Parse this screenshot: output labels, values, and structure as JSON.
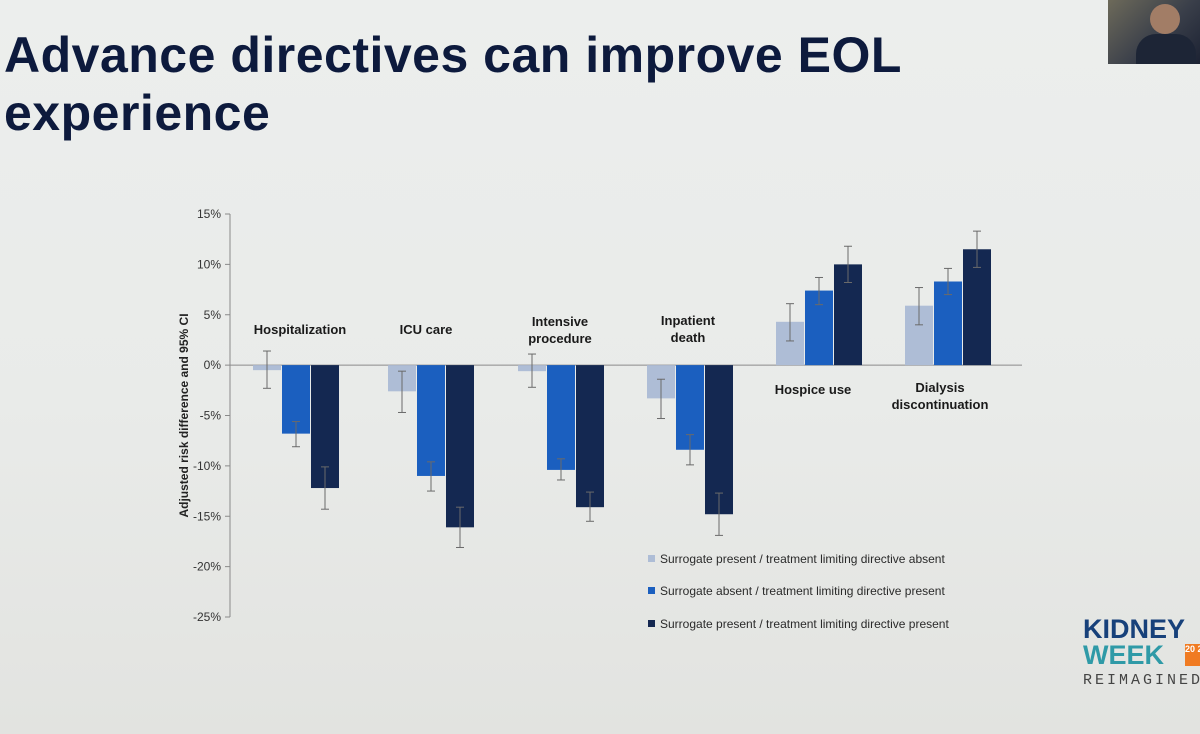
{
  "slide": {
    "title": "Advance directives can improve EOL experience"
  },
  "logo": {
    "line1": "KIDNEY",
    "line2": "WEEK",
    "year": "20 20",
    "line3": "REIMAGINED"
  },
  "colors": {
    "series1": "#aebdd6",
    "series2": "#1b5fbf",
    "series3": "#142851",
    "title": "#0d1a3d"
  },
  "chart_data": {
    "type": "bar",
    "ylabel": "Adjusted risk difference and 95% CI",
    "ylim": [
      -25,
      15
    ],
    "yticks": [
      "15%",
      "10%",
      "5%",
      "0%",
      "-5%",
      "-10%",
      "-15%",
      "-20%",
      "-25%"
    ],
    "yticks_values": [
      15,
      10,
      5,
      0,
      -5,
      -10,
      -15,
      -20,
      -25
    ],
    "categories": [
      "Hospitalization",
      "ICU care",
      "Intensive procedure",
      "Inpatient death",
      "Hospice use",
      "Dialysis discontinuation"
    ],
    "legend_position": "bottom-right",
    "series": [
      {
        "name": "Surrogate present / treatment limiting directive absent",
        "values": [
          -0.5,
          -2.6,
          -0.6,
          -3.3,
          4.3,
          5.9
        ],
        "ci_low": [
          -2.3,
          -4.7,
          -2.2,
          -5.3,
          2.4,
          4.0
        ],
        "ci_high": [
          1.4,
          -0.6,
          1.1,
          -1.4,
          6.1,
          7.7
        ]
      },
      {
        "name": "Surrogate absent / treatment limiting directive present",
        "values": [
          -6.8,
          -11.0,
          -10.4,
          -8.4,
          7.4,
          8.3
        ],
        "ci_low": [
          -8.1,
          -12.5,
          -11.4,
          -9.9,
          6.0,
          7.0
        ],
        "ci_high": [
          -5.6,
          -9.6,
          -9.3,
          -6.9,
          8.7,
          9.6
        ]
      },
      {
        "name": "Surrogate present / treatment limiting directive present",
        "values": [
          -12.2,
          -16.1,
          -14.1,
          -14.8,
          10.0,
          11.5
        ],
        "ci_low": [
          -14.3,
          -18.1,
          -15.5,
          -16.9,
          8.2,
          9.7
        ],
        "ci_high": [
          -10.1,
          -14.1,
          -12.6,
          -12.7,
          11.8,
          13.3
        ]
      }
    ]
  }
}
